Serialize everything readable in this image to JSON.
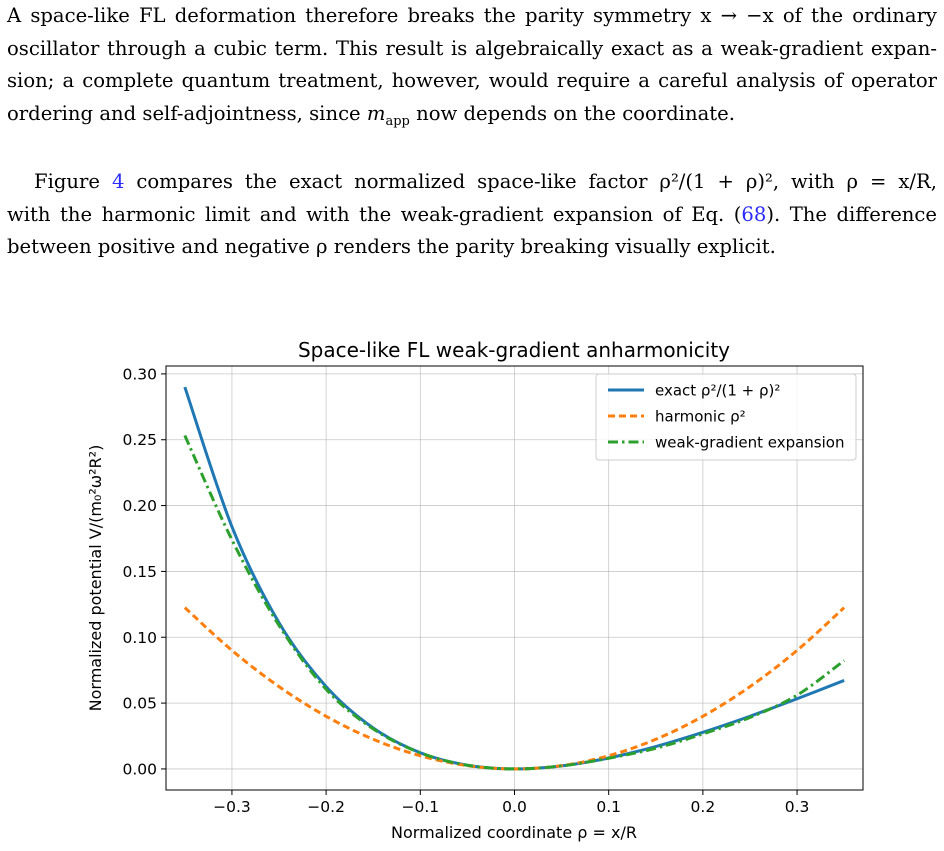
{
  "paragraph1": {
    "line1": "A space-like FL deformation therefore breaks the parity symmetry x → −x of the ordinary",
    "line2": "oscillator through a cubic term. This result is algebraically exact as a weak-gradient expan-",
    "line3": "sion; a complete quantum treatment, however, would require a careful analysis of operator",
    "line4_a": "ordering and self-adjointness, since ",
    "line4_m": "m",
    "line4_sub": "app",
    "line4_b": " now depends on the coordinate."
  },
  "paragraph2": {
    "line1_a": "Figure ",
    "line1_ref": "4",
    "line1_b": " compares the exact normalized space-like factor ρ²/(1 + ρ)², with ρ = x/R,",
    "line2_a": "with the harmonic limit and with the weak-gradient expansion of Eq. (",
    "line2_ref": "68",
    "line2_b": "). The difference",
    "line3": "between positive and negative ρ renders the parity breaking visually explicit."
  },
  "chart_data": {
    "type": "line",
    "title": "Space-like FL weak-gradient anharmonicity",
    "xlabel": "Normalized coordinate ρ = x/R",
    "ylabel": "Normalized potential V/(m₀²ω²R²)",
    "xlim": [
      -0.37,
      0.37
    ],
    "ylim": [
      -0.016,
      0.306
    ],
    "xticks": [
      -0.3,
      -0.2,
      -0.1,
      0.0,
      0.1,
      0.2,
      0.3
    ],
    "xtick_labels": [
      "−0.3",
      "−0.2",
      "−0.1",
      "0.0",
      "0.1",
      "0.2",
      "0.3"
    ],
    "yticks": [
      0.0,
      0.05,
      0.1,
      0.15,
      0.2,
      0.25,
      0.3
    ],
    "ytick_labels": [
      "0.00",
      "0.05",
      "0.10",
      "0.15",
      "0.20",
      "0.25",
      "0.30"
    ],
    "grid": true,
    "legend_position": "top-right",
    "x": [
      -0.35,
      -0.3,
      -0.25,
      -0.2,
      -0.15,
      -0.1,
      -0.05,
      0.0,
      0.05,
      0.1,
      0.15,
      0.2,
      0.25,
      0.3,
      0.35
    ],
    "series": [
      {
        "name": "exact ρ²/(1 + ρ)²",
        "color": "#1f77b4",
        "style": "solid",
        "values": [
          0.29,
          0.184,
          0.111,
          0.0625,
          0.0311,
          0.0123,
          0.0028,
          0.0,
          0.0023,
          0.0083,
          0.017,
          0.0278,
          0.04,
          0.0533,
          0.0672
        ]
      },
      {
        "name": "harmonic ρ²",
        "color": "#ff7f0e",
        "style": "dashed",
        "values": [
          0.1225,
          0.09,
          0.0625,
          0.04,
          0.0225,
          0.01,
          0.0025,
          0.0,
          0.0025,
          0.01,
          0.0225,
          0.04,
          0.0625,
          0.09,
          0.1225
        ]
      },
      {
        "name": "weak-gradient expansion",
        "color": "#2ca02c",
        "style": "dashdot",
        "values": [
          0.2532,
          0.174,
          0.109,
          0.0605,
          0.0304,
          0.0122,
          0.0028,
          0.0,
          0.0023,
          0.0081,
          0.0157,
          0.0266,
          0.0391,
          0.056,
          0.0823
        ]
      }
    ]
  }
}
